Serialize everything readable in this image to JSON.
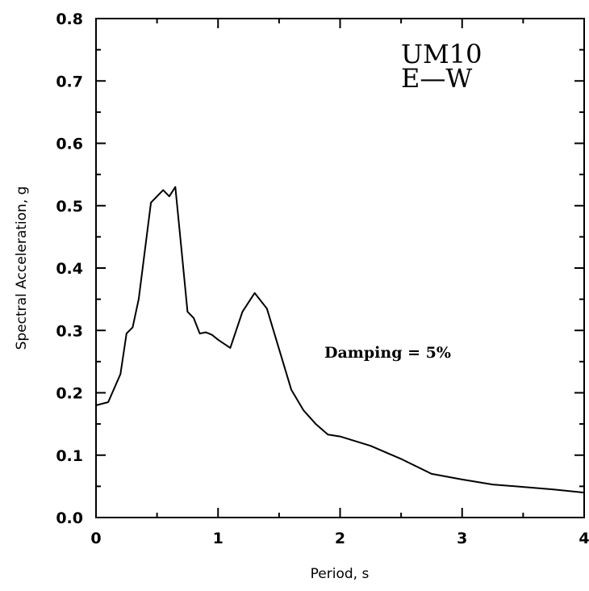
{
  "chart_data": {
    "type": "line",
    "xlabel": "Period, s",
    "ylabel": "Spectral Acceleration, g",
    "xlim": [
      0,
      4
    ],
    "ylim": [
      0,
      0.8
    ],
    "xticks": [
      "0",
      "1",
      "2",
      "3",
      "4"
    ],
    "yticks": [
      "0.0",
      "0.1",
      "0.2",
      "0.3",
      "0.4",
      "0.5",
      "0.6",
      "0.7",
      "0.8"
    ],
    "grid": false,
    "annotations": {
      "station_line1": "UM10",
      "station_line2": "E—W",
      "damping": "Damping = 5%"
    },
    "series": [
      {
        "x": [
          0,
          0.1,
          0.2,
          0.25,
          0.3,
          0.35,
          0.45,
          0.5,
          0.55,
          0.6,
          0.65,
          0.7,
          0.75,
          0.8,
          0.85,
          0.9,
          0.95,
          1.0,
          1.1,
          1.2,
          1.3,
          1.4,
          1.5,
          1.6,
          1.7,
          1.8,
          1.9,
          2.0,
          2.25,
          2.5,
          2.75,
          3.0,
          3.25,
          3.5,
          3.75,
          4.0
        ],
        "y": [
          0.18,
          0.185,
          0.23,
          0.295,
          0.305,
          0.35,
          0.505,
          0.515,
          0.525,
          0.515,
          0.53,
          0.43,
          0.33,
          0.32,
          0.295,
          0.297,
          0.293,
          0.285,
          0.272,
          0.33,
          0.36,
          0.335,
          0.27,
          0.205,
          0.172,
          0.15,
          0.133,
          0.13,
          0.115,
          0.094,
          0.07,
          0.061,
          0.053,
          0.049,
          0.045,
          0.04
        ]
      }
    ]
  }
}
